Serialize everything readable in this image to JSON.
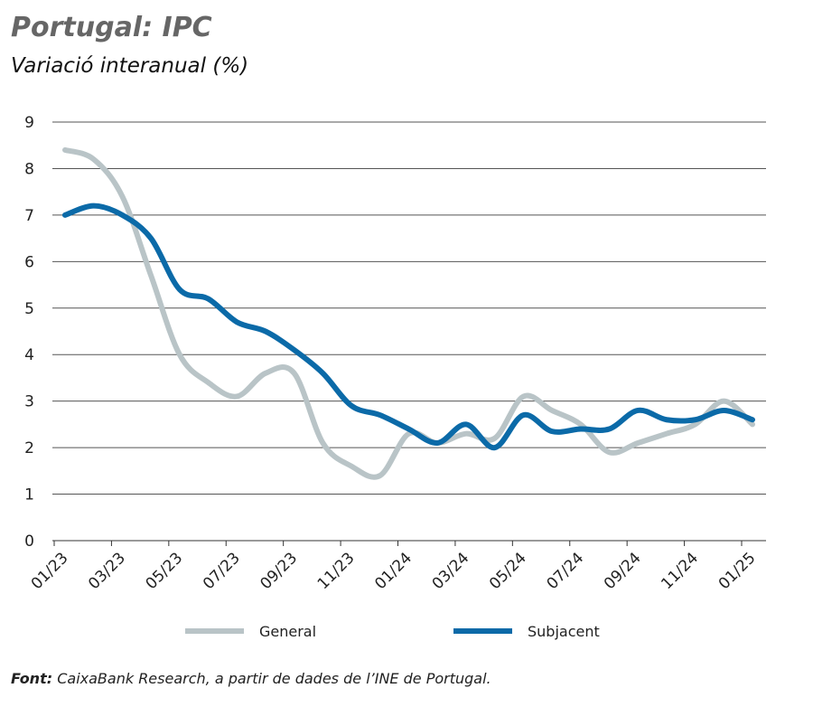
{
  "chart_data": {
    "type": "line",
    "title": "Portugal: IPC",
    "subtitle": "Variació interanual (%)",
    "categories": [
      "01/23",
      null,
      "03/23",
      null,
      "05/23",
      null,
      "07/23",
      null,
      "09/23",
      null,
      "11/23",
      null,
      "01/24",
      null,
      "03/24",
      null,
      "05/24",
      null,
      "07/24",
      null,
      "09/24",
      null,
      "11/24",
      null,
      "01/25"
    ],
    "series": [
      {
        "name": "General",
        "color": "#b9c4c7",
        "values": [
          8.4,
          8.2,
          7.4,
          5.7,
          4.0,
          3.4,
          3.1,
          3.6,
          3.6,
          2.1,
          1.6,
          1.4,
          2.3,
          2.1,
          2.3,
          2.2,
          3.1,
          2.8,
          2.5,
          1.9,
          2.1,
          2.3,
          2.5,
          3.0,
          2.5
        ]
      },
      {
        "name": "Subjacent",
        "color": "#0b6aa8",
        "values": [
          7.0,
          7.2,
          7.0,
          6.5,
          5.4,
          5.2,
          4.7,
          4.5,
          4.1,
          3.6,
          2.9,
          2.7,
          2.4,
          2.1,
          2.5,
          2.0,
          2.7,
          2.35,
          2.4,
          2.4,
          2.8,
          2.6,
          2.6,
          2.8,
          2.6
        ]
      }
    ],
    "ylim": [
      0,
      9
    ],
    "yticks": [
      0,
      1,
      2,
      3,
      4,
      5,
      6,
      7,
      8,
      9
    ],
    "grid": true,
    "source_label": "Font:",
    "source": "CaixaBank Research, a partir de dades de l’INE de Portugal."
  }
}
